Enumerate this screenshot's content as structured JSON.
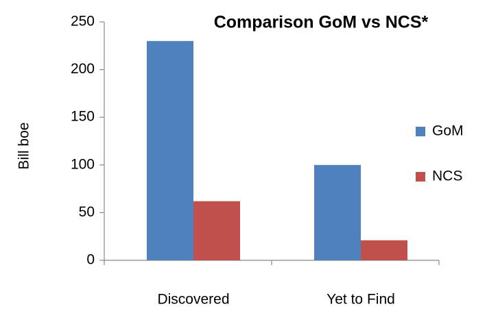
{
  "chart_data": {
    "type": "bar",
    "title": "Comparison GoM vs NCS*",
    "y_label": "Bill boe",
    "categories": [
      "Discovered",
      "Yet to Find"
    ],
    "series": [
      {
        "name": "GoM",
        "color": "#4f81bd",
        "values": [
          230,
          100
        ]
      },
      {
        "name": "NCS",
        "color": "#c0504d",
        "values": [
          62,
          21
        ]
      }
    ],
    "ylim": [
      0,
      250
    ],
    "yticks": [
      0,
      50,
      100,
      150,
      200,
      250
    ],
    "legend": "right"
  }
}
